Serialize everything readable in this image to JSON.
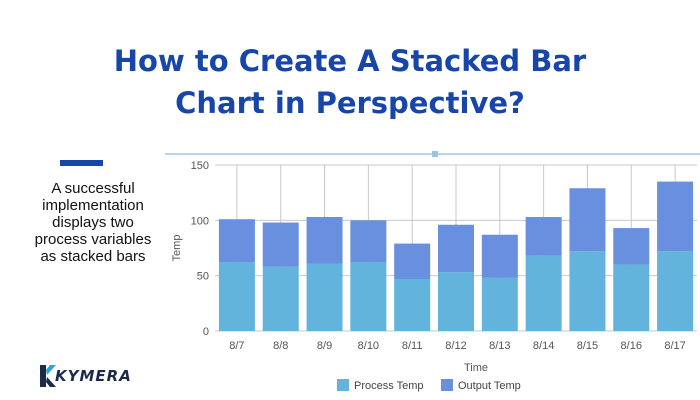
{
  "headline": {
    "line1": "How to Create A Stacked Bar",
    "line2": "Chart in Perspective?"
  },
  "caption": {
    "line1": "A successful",
    "line2": "implementation",
    "line3": "displays two",
    "line4": "process variables",
    "line5": "as stacked bars"
  },
  "logo": {
    "text": "KYMERA"
  },
  "colors": {
    "title": "#1746a8",
    "process": "#62b4dc",
    "output": "#6890de",
    "grid": "#c8c8c8"
  },
  "chart_data": {
    "type": "bar",
    "stacked": true,
    "title": "",
    "xlabel": "Time",
    "ylabel": "Temp",
    "ylim": [
      0,
      150
    ],
    "yticks": [
      0,
      50,
      100,
      150
    ],
    "grid": true,
    "legend_position": "bottom",
    "categories": [
      "8/7",
      "8/8",
      "8/9",
      "8/10",
      "8/11",
      "8/12",
      "8/13",
      "8/14",
      "8/15",
      "8/16",
      "8/17"
    ],
    "series": [
      {
        "name": "Process Temp",
        "color": "#62b4dc",
        "values": [
          62,
          58,
          61,
          62,
          47,
          53,
          48,
          68,
          72,
          60,
          72
        ]
      },
      {
        "name": "Output Temp",
        "color": "#6890de",
        "values": [
          39,
          40,
          42,
          38,
          32,
          43,
          39,
          35,
          57,
          33,
          63
        ]
      }
    ]
  }
}
